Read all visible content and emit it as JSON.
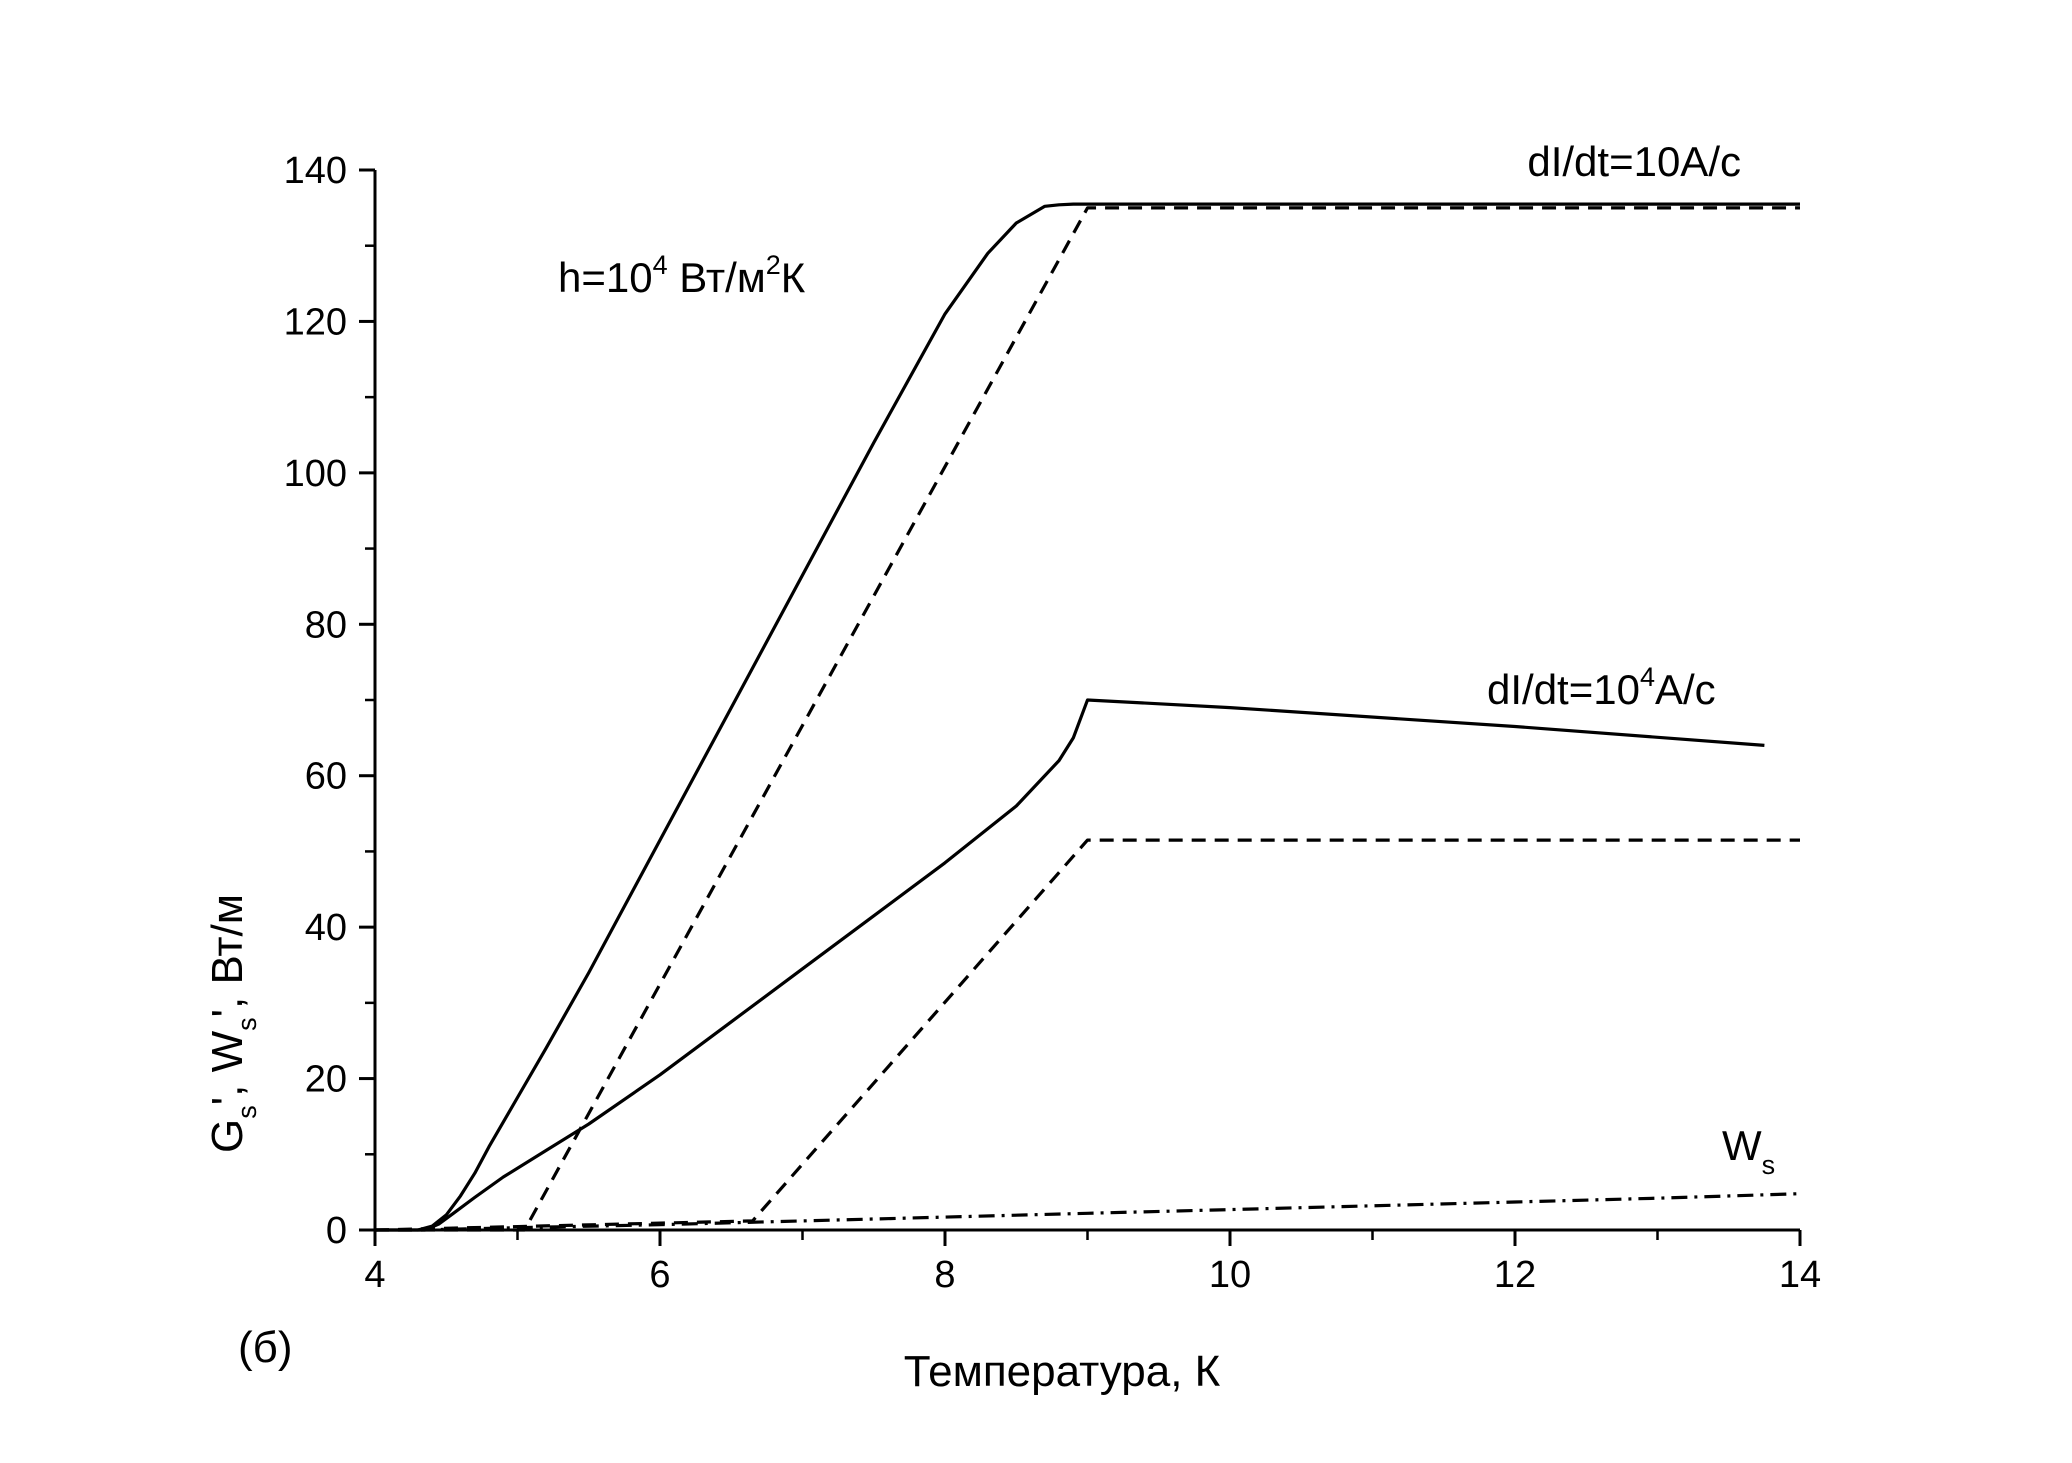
{
  "chart_data": {
    "type": "line",
    "panel_label": "(б)",
    "xlabel": "Температура, К",
    "ylabel": {
      "parts": [
        "G",
        "s",
        "', W",
        "s",
        "', Вт/м"
      ]
    },
    "xlim": [
      4,
      14
    ],
    "ylim": [
      0,
      140
    ],
    "x_ticks": [
      4,
      6,
      8,
      10,
      12,
      14
    ],
    "y_ticks": [
      0,
      20,
      40,
      60,
      80,
      100,
      120,
      140
    ],
    "x_minor_step": 1,
    "y_minor_step": 10,
    "annotations": {
      "h_label": {
        "pre": "h=10",
        "sup1": "4",
        "mid": " Вт/м",
        "sup2": "2",
        "post": "К"
      },
      "rate_10": {
        "text": "dI/dt=10A/c"
      },
      "rate_1e4": {
        "pre": "dI/dt=10",
        "sup": "4",
        "post": "A/c"
      },
      "ws_label": {
        "main": "W",
        "sub": "s"
      }
    },
    "series": [
      {
        "group": "dI/dt=10A/c",
        "style": "solid",
        "x": [
          4.0,
          4.3,
          4.4,
          4.5,
          4.6,
          4.7,
          4.8,
          5.0,
          5.2,
          5.5,
          6.0,
          6.5,
          7.0,
          7.5,
          8.0,
          8.3,
          8.5,
          8.7,
          8.8,
          8.9,
          9.0,
          10.0,
          12.0,
          14.0
        ],
        "y": [
          0,
          0,
          0.5,
          2,
          4.5,
          7.5,
          11,
          17.5,
          24,
          34,
          51.5,
          69,
          86.5,
          104,
          121,
          129,
          133,
          135.2,
          135.4,
          135.5,
          135.5,
          135.5,
          135.5,
          135.5
        ]
      },
      {
        "group": "dI/dt=10A/c",
        "style": "dashed",
        "x": [
          4.0,
          5.05,
          9.0,
          14.0
        ],
        "y": [
          0,
          0,
          135.0,
          135.0
        ]
      },
      {
        "group": "dI/dt=10^4A/c",
        "style": "solid",
        "x": [
          4.0,
          4.35,
          4.45,
          4.55,
          4.7,
          4.9,
          5.2,
          5.5,
          6.0,
          6.5,
          7.0,
          7.5,
          8.0,
          8.5,
          8.8,
          8.9,
          9.0,
          10.0,
          12.0,
          13.75
        ],
        "y": [
          0,
          0,
          0.8,
          2.2,
          4.3,
          7.0,
          10.5,
          14,
          20.5,
          27.5,
          34.5,
          41.5,
          48.5,
          56,
          62,
          65,
          70,
          69,
          66.5,
          64
        ]
      },
      {
        "group": "dI/dt=10^4A/c",
        "style": "dashed",
        "x": [
          4.0,
          6.65,
          9.0,
          14.0
        ],
        "y": [
          0,
          1.2,
          51.5,
          51.5
        ]
      },
      {
        "name": "Ws",
        "style": "dashdot",
        "x": [
          4.3,
          5.0,
          6.0,
          7.0,
          8.0,
          9.0,
          10.0,
          11.0,
          12.0,
          13.0,
          14.0
        ],
        "y": [
          0,
          0.3,
          0.7,
          1.2,
          1.7,
          2.2,
          2.7,
          3.2,
          3.7,
          4.2,
          4.8
        ]
      }
    ]
  }
}
